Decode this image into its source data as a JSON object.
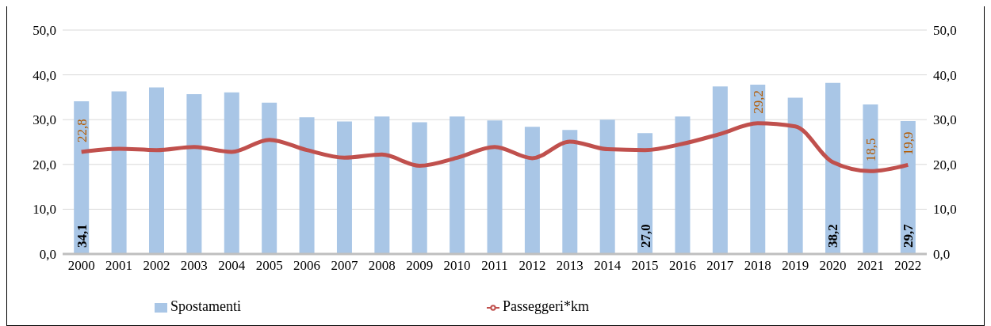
{
  "chart_data": {
    "type": "bar",
    "categories": [
      "2000",
      "2001",
      "2002",
      "2003",
      "2004",
      "2005",
      "2006",
      "2007",
      "2008",
      "2009",
      "2010",
      "2011",
      "2012",
      "2013",
      "2014",
      "2015",
      "2016",
      "2017",
      "2018",
      "2019",
      "2020",
      "2021",
      "2022"
    ],
    "series": [
      {
        "name": "Spostamenti",
        "color": "#a9c6e6",
        "values": [
          34.1,
          36.3,
          37.2,
          35.7,
          36.1,
          33.8,
          30.5,
          29.6,
          30.7,
          29.4,
          30.7,
          29.8,
          28.4,
          27.7,
          30.0,
          27.0,
          30.7,
          37.4,
          37.8,
          34.9,
          38.2,
          33.4,
          29.7
        ],
        "value_labels": [
          "34,1",
          null,
          null,
          null,
          null,
          null,
          null,
          null,
          null,
          null,
          null,
          null,
          null,
          null,
          null,
          "27,0",
          null,
          null,
          null,
          null,
          "38,2",
          null,
          "29,7"
        ]
      },
      {
        "name": "Passeggeri*km",
        "type": "line",
        "color": "#c0504d",
        "values": [
          22.8,
          23.5,
          23.2,
          23.9,
          22.8,
          25.5,
          23.2,
          21.5,
          22.2,
          19.7,
          21.5,
          23.9,
          21.4,
          25.1,
          23.4,
          23.2,
          24.6,
          26.8,
          29.2,
          28.5,
          20.5,
          18.5,
          19.9
        ],
        "value_labels": [
          "22,8",
          null,
          null,
          null,
          null,
          null,
          null,
          null,
          null,
          null,
          null,
          null,
          null,
          null,
          null,
          null,
          null,
          null,
          "29,2",
          null,
          null,
          "18,5",
          "19,9"
        ]
      }
    ],
    "ylim": [
      0,
      50
    ],
    "yticks": [
      {
        "value": 0,
        "label": "0,0"
      },
      {
        "value": 10,
        "label": "10,0"
      },
      {
        "value": 20,
        "label": "20,0"
      },
      {
        "value": 30,
        "label": "30,0"
      },
      {
        "value": 40,
        "label": "40,0"
      },
      {
        "value": 50,
        "label": "50,0"
      }
    ],
    "y2lim": [
      0,
      50
    ],
    "y2ticks": [
      {
        "value": 0,
        "label": "0,0"
      },
      {
        "value": 10,
        "label": "10,0"
      },
      {
        "value": 20,
        "label": "20,0"
      },
      {
        "value": 30,
        "label": "30,0"
      },
      {
        "value": 40,
        "label": "40,0"
      },
      {
        "value": 50,
        "label": "50,0"
      }
    ],
    "grid": "y",
    "legend": "bottom",
    "marker": "none",
    "line_style": "solid"
  }
}
